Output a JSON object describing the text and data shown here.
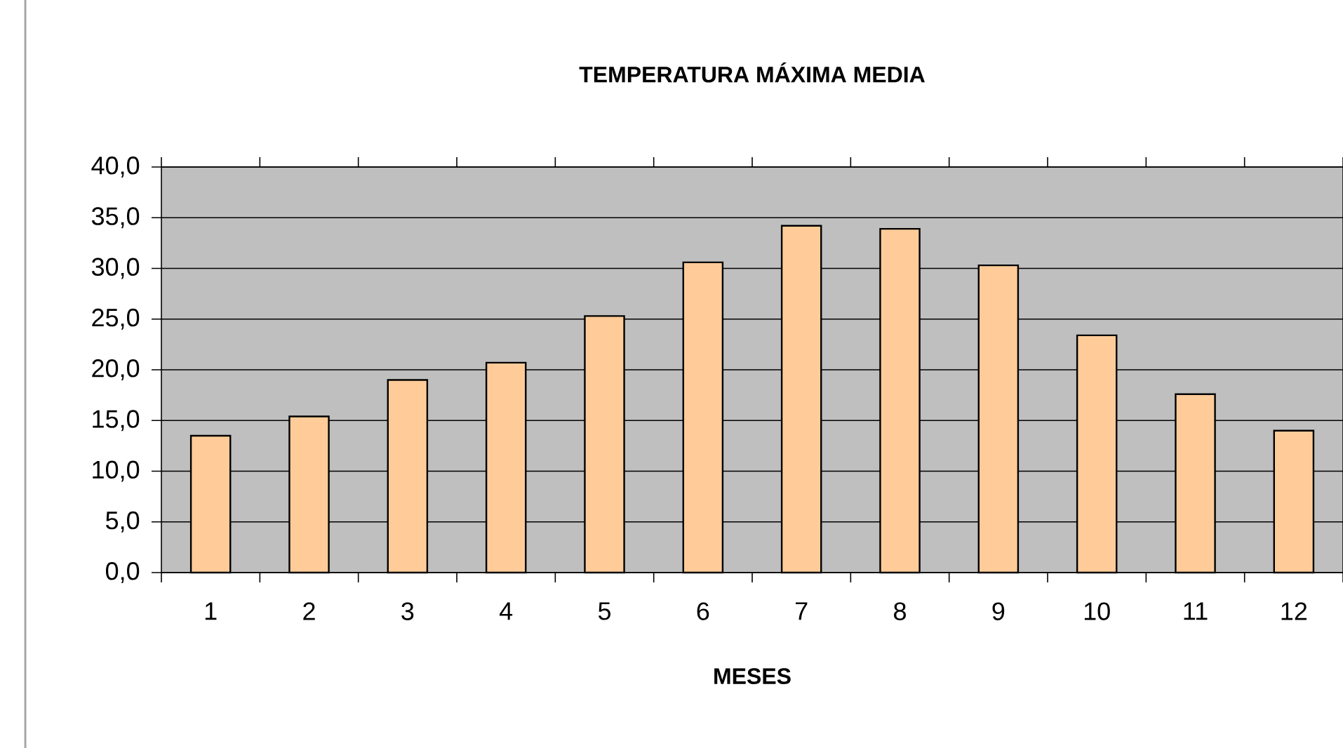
{
  "chart_data": {
    "type": "bar",
    "title": "TEMPERATURA MÁXIMA MEDIA",
    "xlabel": "MESES",
    "categories": [
      "1",
      "2",
      "3",
      "4",
      "5",
      "6",
      "7",
      "8",
      "9",
      "10",
      "11",
      "12"
    ],
    "values": [
      13.5,
      15.4,
      19.0,
      20.7,
      25.3,
      30.6,
      34.2,
      33.9,
      30.3,
      23.4,
      17.6,
      14.0
    ],
    "color": "#ffcc99",
    "ylim": [
      0,
      40
    ],
    "yticks": [
      {
        "value": 0,
        "label": "0,0"
      },
      {
        "value": 5,
        "label": "5,0"
      },
      {
        "value": 10,
        "label": "10,0"
      },
      {
        "value": 15,
        "label": "15,0"
      },
      {
        "value": 20,
        "label": "20,0"
      },
      {
        "value": 25,
        "label": "25,0"
      },
      {
        "value": 30,
        "label": "30,0"
      },
      {
        "value": 35,
        "label": "35,0"
      },
      {
        "value": 40,
        "label": "40,0"
      }
    ],
    "grid": "y"
  }
}
